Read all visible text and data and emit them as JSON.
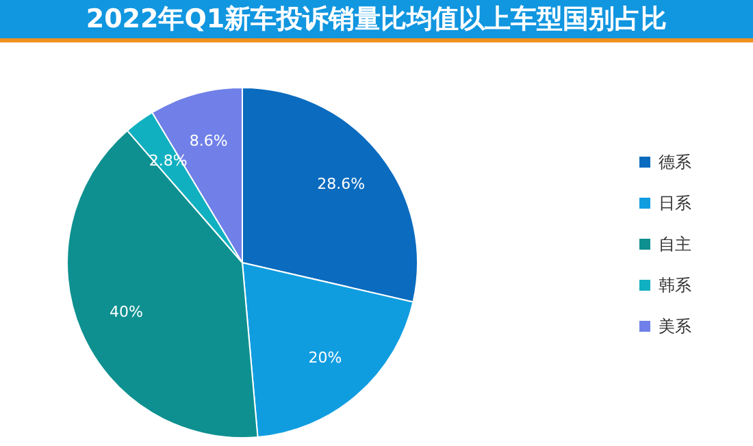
{
  "chart_data": {
    "type": "pie",
    "title": "2022年Q1新车投诉销量比均值以上车型国别占比",
    "categories": [
      "德系",
      "日系",
      "自主",
      "韩系",
      "美系"
    ],
    "values": [
      28.6,
      20,
      40,
      2.8,
      8.6
    ],
    "colors": [
      "#0a6bbf",
      "#109de0",
      "#0e9090",
      "#10b0c0",
      "#7080e8"
    ],
    "value_labels": [
      "28.6%",
      "20%",
      "40%",
      "2.8%",
      "8.6%"
    ],
    "legend": "right"
  }
}
